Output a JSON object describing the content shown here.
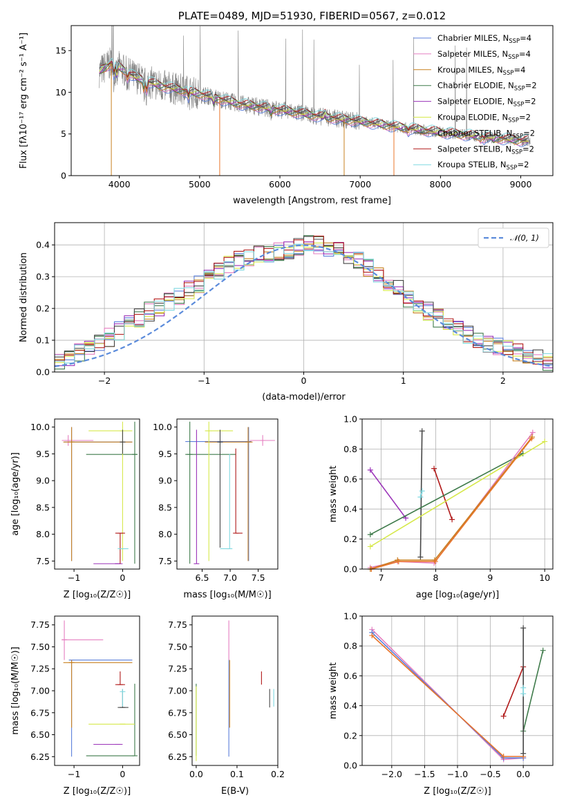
{
  "colors": {
    "Chabrier MILES": "#5b7fdb",
    "Salpeter MILES": "#e57ec0",
    "Kroupa MILES": "#c8801f",
    "Chabrier ELODIE": "#3e7a4a",
    "Salpeter ELODIE": "#9a32b8",
    "Kroupa ELODIE": "#d6e84a",
    "Chabrier STELIB": "#454545",
    "Salpeter STELIB": "#b01818",
    "Kroupa STELIB": "#7fd8e0",
    "data": "#7f7f7f",
    "orange": "#e8742a"
  },
  "chart_data": [
    {
      "id": "spectrum",
      "type": "line",
      "title": "PLATE=0489, MJD=51930, FIBERID=0567, z=0.012",
      "xlabel": "wavelength [Angstrom, rest frame]",
      "ylabel": "Flux [fλ10⁻¹⁷ erg cm⁻² s⁻¹ A⁻¹]",
      "xlim": [
        3400,
        9400
      ],
      "ylim": [
        0,
        18
      ],
      "xticks": [
        "4000",
        "5000",
        "6000",
        "7000",
        "8000",
        "9000"
      ],
      "yticks": [
        "0",
        "5",
        "10",
        "15"
      ],
      "continuum_x": [
        3750,
        3900,
        4000,
        4200,
        4500,
        5000,
        5500,
        6000,
        6500,
        7000,
        7500,
        8000,
        8500,
        9000
      ],
      "continuum_y": [
        12.5,
        13.5,
        13.0,
        11.8,
        10.8,
        9.8,
        8.6,
        7.9,
        7.1,
        6.5,
        5.8,
        5.2,
        4.7,
        4.2
      ],
      "legend": [
        {
          "name": "Chabrier MILES, N",
          "sub": "SSP",
          "suffix": "=4"
        },
        {
          "name": "Salpeter MILES, N",
          "sub": "SSP",
          "suffix": "=4"
        },
        {
          "name": "Kroupa MILES, N",
          "sub": "SSP",
          "suffix": "=4"
        },
        {
          "name": "Chabrier ELODIE, N",
          "sub": "SSP",
          "suffix": "=2"
        },
        {
          "name": "Salpeter ELODIE, N",
          "sub": "SSP",
          "suffix": "=2"
        },
        {
          "name": "Kroupa ELODIE, N",
          "sub": "SSP",
          "suffix": "=2"
        },
        {
          "name": "Chabrier STELIB, N",
          "sub": "SSP",
          "suffix": "=2"
        },
        {
          "name": "Salpeter STELIB, N",
          "sub": "SSP",
          "suffix": "=2"
        },
        {
          "name": "Kroupa STELIB, N",
          "sub": "SSP",
          "suffix": "=2"
        }
      ]
    },
    {
      "id": "residuals",
      "type": "line",
      "xlabel": "(data-model)/error",
      "ylabel": "Normed distribution",
      "xlim": [
        -2.5,
        2.5
      ],
      "ylim": [
        0,
        0.47
      ],
      "xticks": [
        "−2",
        "−1",
        "0",
        "1",
        "2"
      ],
      "yticks": [
        "0.0",
        "0.1",
        "0.2",
        "0.3",
        "0.4"
      ],
      "gaussian_label": "𝒩(0, 1)",
      "hist_base": [
        0.03,
        0.04,
        0.06,
        0.08,
        0.09,
        0.11,
        0.13,
        0.15,
        0.17,
        0.19,
        0.2,
        0.22,
        0.24,
        0.26,
        0.28,
        0.3,
        0.32,
        0.34,
        0.35,
        0.36,
        0.37,
        0.37,
        0.38,
        0.38,
        0.39,
        0.4,
        0.4,
        0.39,
        0.38,
        0.37,
        0.35,
        0.33,
        0.3,
        0.28,
        0.26,
        0.23,
        0.21,
        0.19,
        0.17,
        0.15,
        0.13,
        0.12,
        0.1,
        0.09,
        0.08,
        0.07,
        0.06,
        0.05,
        0.04,
        0.03
      ]
    },
    {
      "id": "age-Z",
      "type": "scatter",
      "xlabel": "Z [log₁₀(Z/Z☉)]",
      "ylabel": "age  [log₁₀(age/yr)]",
      "xlim": [
        -1.4,
        0.35
      ],
      "ylim": [
        7.35,
        10.15
      ],
      "xticks": [
        "−1",
        "0"
      ],
      "yticks": [
        "7.5",
        "8.0",
        "8.5",
        "9.0",
        "9.5",
        "10.0"
      ]
    },
    {
      "id": "age-mass",
      "type": "scatter",
      "xlabel": "mass [log₁₀(M/M☉)]",
      "xlim": [
        6.05,
        7.85
      ],
      "ylim": [
        7.35,
        10.15
      ],
      "xticks": [
        "6.5",
        "7.0",
        "7.5"
      ],
      "yticks": [
        "7.5",
        "8.0",
        "8.5",
        "9.0",
        "9.5",
        "10.0"
      ]
    },
    {
      "id": "weight-age",
      "type": "line",
      "xlabel": "age  [log₁₀(age/yr)]",
      "ylabel": "mass weight",
      "xlim": [
        6.65,
        10.15
      ],
      "ylim": [
        0,
        1
      ],
      "xticks": [
        "7",
        "8",
        "9",
        "10"
      ],
      "yticks": [
        "0.0",
        "0.2",
        "0.4",
        "0.6",
        "0.8",
        "1.0"
      ],
      "series": [
        {
          "color": "Salpeter ELODIE",
          "x": [
            6.8,
            7.45
          ],
          "y": [
            0.66,
            0.34
          ]
        },
        {
          "color": "Chabrier STELIB",
          "x": [
            7.75,
            7.72
          ],
          "y": [
            0.92,
            0.08
          ]
        },
        {
          "color": "Salpeter STELIB",
          "x": [
            7.97,
            8.3
          ],
          "y": [
            0.67,
            0.33
          ]
        },
        {
          "color": "Chabrier ELODIE",
          "x": [
            6.8,
            9.6
          ],
          "y": [
            0.23,
            0.77
          ]
        },
        {
          "color": "Kroupa ELODIE",
          "x": [
            6.8,
            10.0
          ],
          "y": [
            0.15,
            0.85
          ]
        },
        {
          "color": "Salpeter MILES",
          "x": [
            6.8,
            7.3,
            7.97,
            9.78
          ],
          "y": [
            0.01,
            0.05,
            0.04,
            0.91
          ]
        },
        {
          "color": "Kroupa MILES",
          "x": [
            6.8,
            7.3,
            7.98,
            9.77
          ],
          "y": [
            0.0,
            0.06,
            0.06,
            0.88
          ]
        },
        {
          "color": "orange",
          "x": [
            6.82,
            7.32,
            7.99,
            9.76
          ],
          "y": [
            0.0,
            0.05,
            0.05,
            0.87
          ]
        },
        {
          "color": "Kroupa STELIB",
          "x": [
            7.72,
            7.75
          ],
          "y": [
            0.48,
            0.52
          ]
        }
      ]
    },
    {
      "id": "mass-Z",
      "type": "scatter",
      "xlabel": "Z [log₁₀(Z/Z☉)]",
      "ylabel": "mass [log₁₀(M/M☉)]",
      "xlim": [
        -1.4,
        0.35
      ],
      "ylim": [
        6.15,
        7.85
      ],
      "xticks": [
        "−1",
        "0"
      ],
      "yticks": [
        "6.25",
        "6.50",
        "6.75",
        "7.00",
        "7.25",
        "7.50",
        "7.75"
      ]
    },
    {
      "id": "mass-EBV",
      "type": "scatter",
      "xlabel": "E(B-V)",
      "xlim": [
        -0.01,
        0.2
      ],
      "ylim": [
        6.15,
        7.85
      ],
      "xticks": [
        "0.0",
        "0.1",
        "0.2"
      ],
      "yticks": [
        "6.25",
        "6.50",
        "6.75",
        "7.00",
        "7.25",
        "7.50",
        "7.75"
      ]
    },
    {
      "id": "weight-Z",
      "type": "line",
      "xlabel": "Z [log₁₀(Z/Z☉)]",
      "ylabel": "mass weight",
      "xlim": [
        -2.45,
        0.45
      ],
      "ylim": [
        0,
        1
      ],
      "xticks": [
        "−2.0",
        "−1.5",
        "−1.0",
        "−0.5",
        "0.0"
      ],
      "yticks": [
        "0.0",
        "0.2",
        "0.4",
        "0.6",
        "0.8",
        "1.0"
      ],
      "series": [
        {
          "color": "Salpeter MILES",
          "x": [
            -2.3,
            -0.3,
            0.0
          ],
          "y": [
            0.91,
            0.04,
            0.05
          ]
        },
        {
          "color": "Chabrier MILES",
          "x": [
            -2.3,
            -0.3,
            0.0
          ],
          "y": [
            0.89,
            0.05,
            0.05
          ]
        },
        {
          "color": "orange",
          "x": [
            -2.3,
            -0.3,
            0.0
          ],
          "y": [
            0.87,
            0.06,
            0.06
          ]
        },
        {
          "color": "Salpeter STELIB",
          "x": [
            -0.3,
            0.0
          ],
          "y": [
            0.33,
            0.66
          ]
        },
        {
          "color": "Chabrier ELODIE",
          "x": [
            0.0,
            0.3
          ],
          "y": [
            0.23,
            0.77
          ]
        },
        {
          "color": "Chabrier STELIB",
          "x": [
            0.0,
            0.0
          ],
          "y": [
            0.08,
            0.92
          ]
        },
        {
          "color": "Kroupa STELIB",
          "x": [
            0.0,
            0.0
          ],
          "y": [
            0.48,
            0.52
          ]
        }
      ]
    }
  ]
}
